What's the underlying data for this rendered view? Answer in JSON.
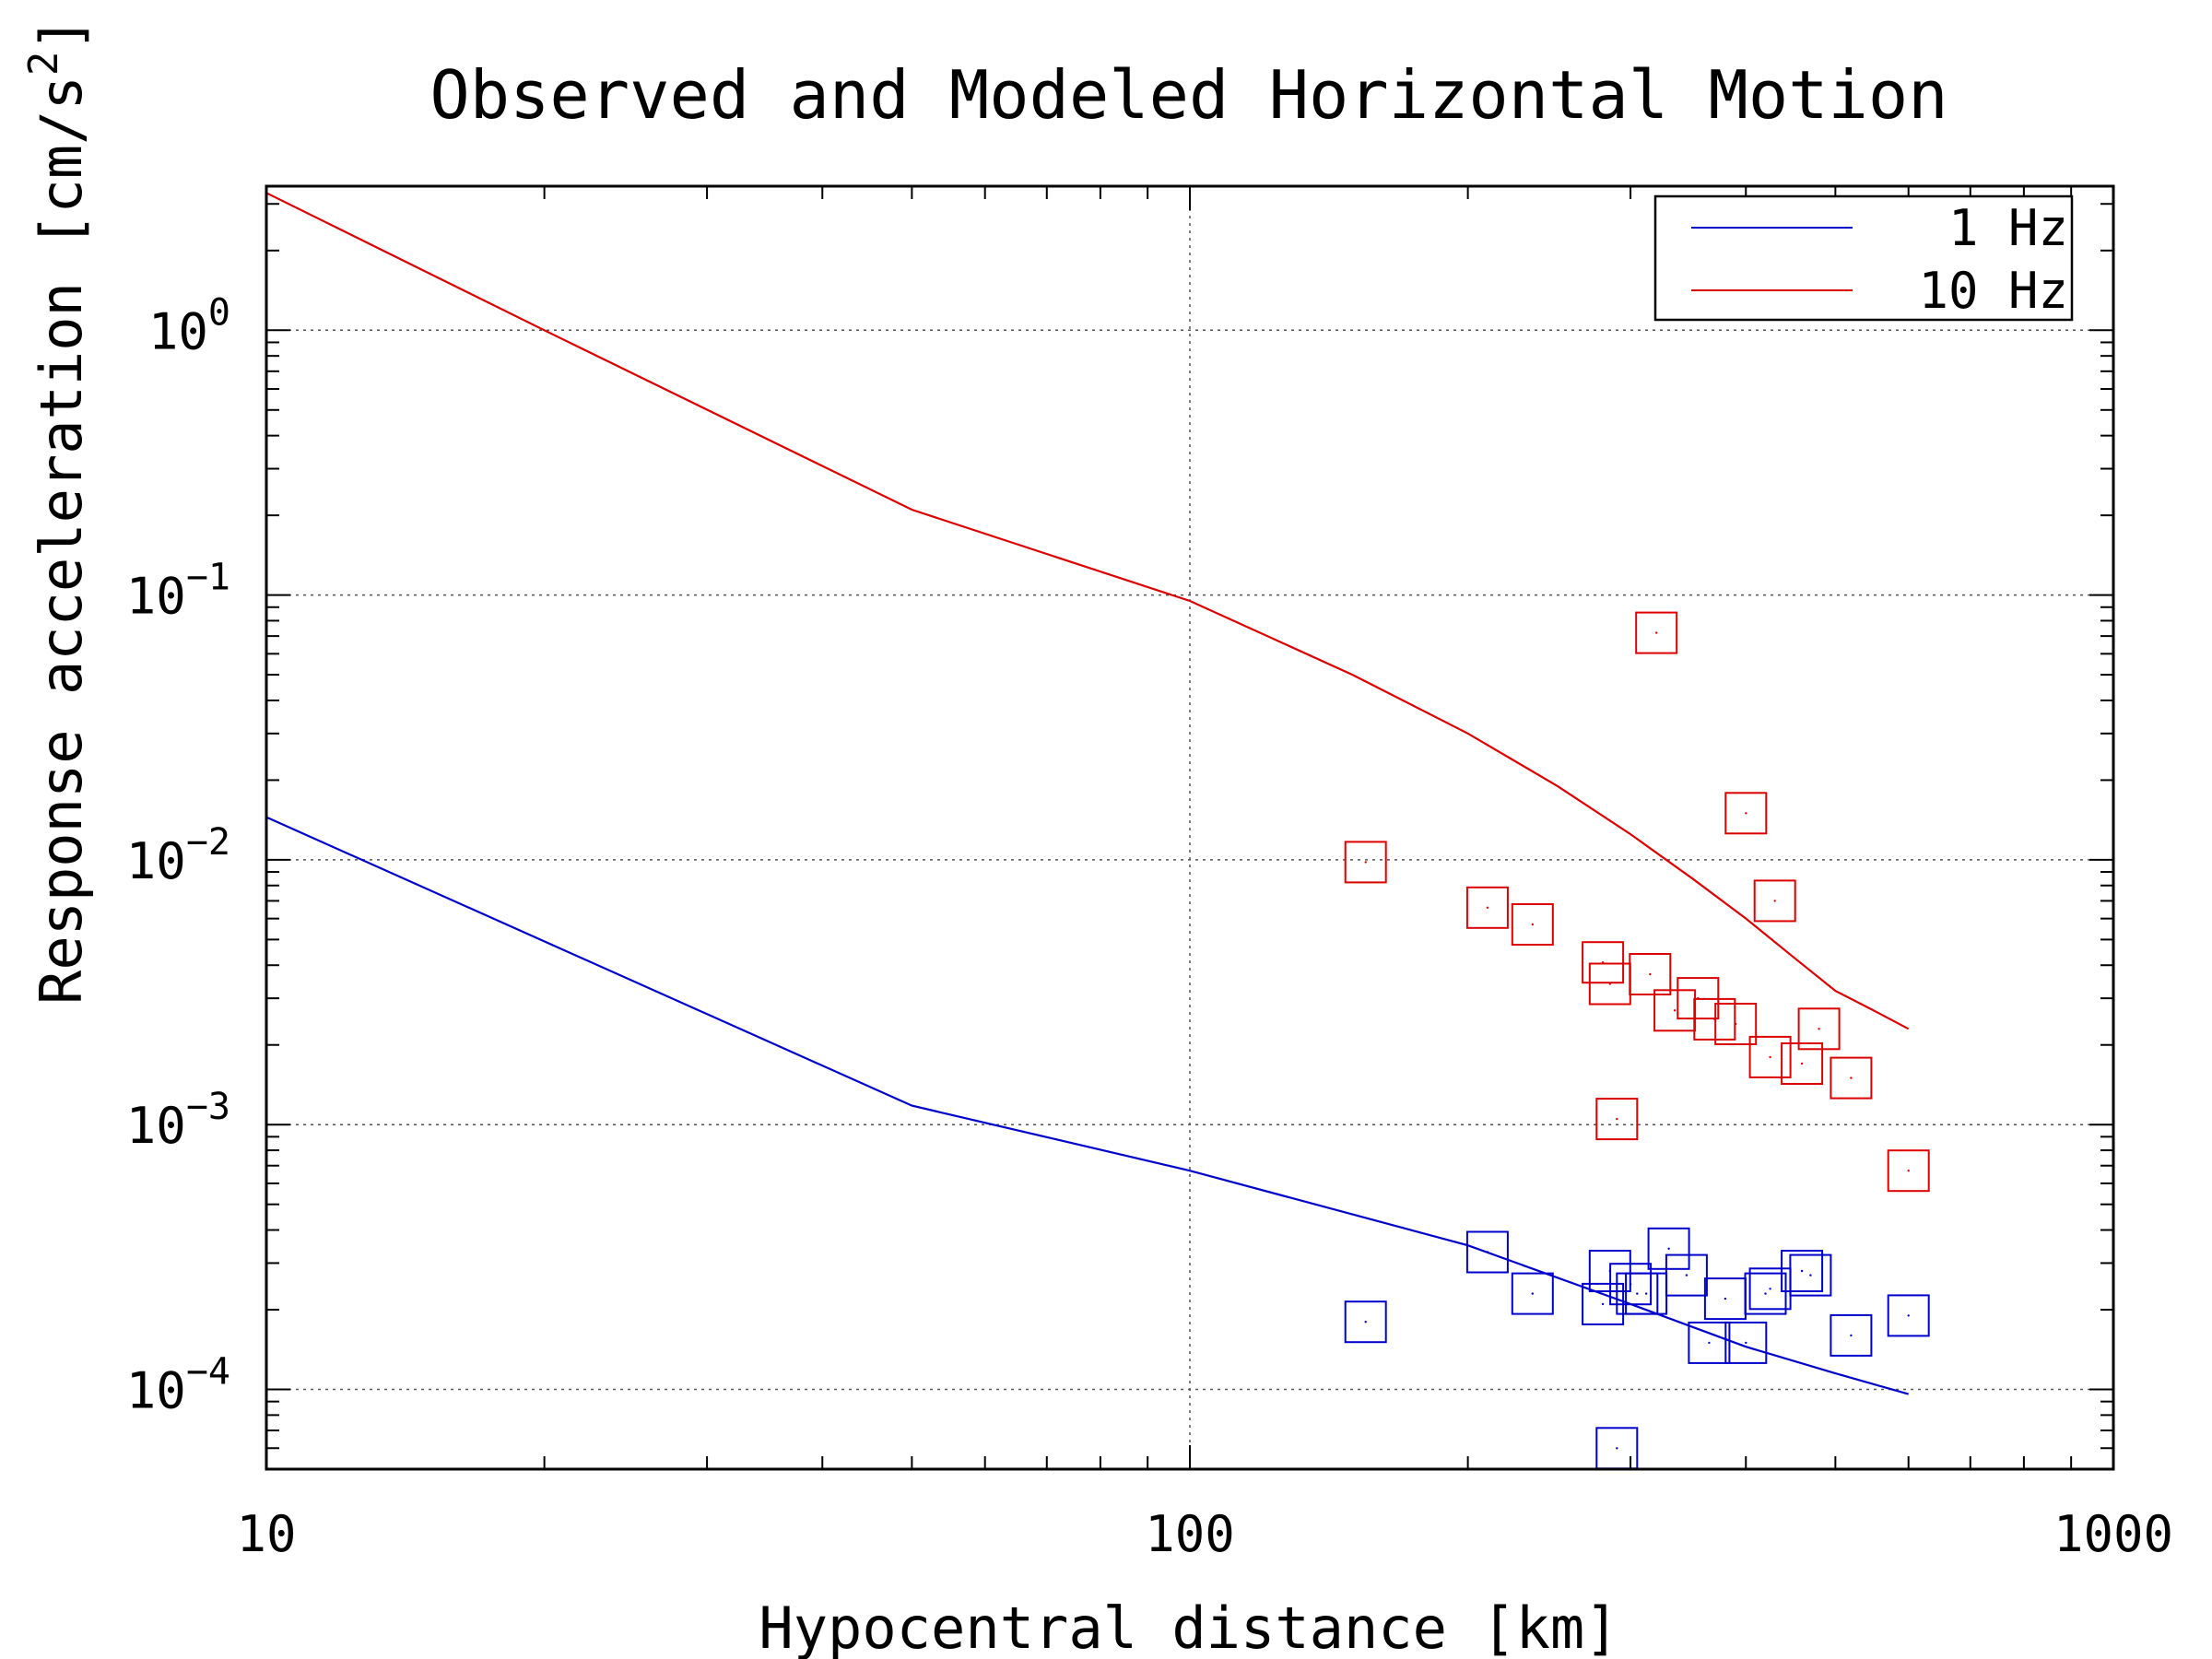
{
  "chart_data": {
    "type": "scatter",
    "title": "Observed and Modeled Horizontal Motion",
    "xlabel": "Hypocentral distance [km]",
    "ylabel": "Response acceleration [cm/s",
    "ylabel_superscript": "2",
    "ylabel_suffix": "]",
    "x_scale": "log",
    "y_scale": "log",
    "xlim": [
      10,
      1000
    ],
    "ylim": [
      5e-05,
      3.5
    ],
    "x_ticks": [
      {
        "value": 10,
        "label": "10"
      },
      {
        "value": 100,
        "label": "100"
      },
      {
        "value": 1000,
        "label": "1000"
      }
    ],
    "y_ticks": [
      {
        "value": 1,
        "base": "10",
        "exp": "0"
      },
      {
        "value": 0.1,
        "base": "10",
        "exp": "−1"
      },
      {
        "value": 0.01,
        "base": "10",
        "exp": "−2"
      },
      {
        "value": 0.001,
        "base": "10",
        "exp": "−3"
      },
      {
        "value": 0.0001,
        "base": "10",
        "exp": "−4"
      }
    ],
    "grid": true,
    "legend_position": "top-right",
    "series": [
      {
        "name": "1 Hz",
        "color": "#0000cc",
        "line": {
          "x": [
            10,
            50,
            100,
            200,
            300,
            400,
            500,
            600
          ],
          "y": [
            0.0145,
            0.00118,
            0.00067,
            0.00035,
            0.00021,
            0.000145,
            0.000115,
            9.6e-05
          ]
        },
        "observed": {
          "x": [
            155,
            210,
            235,
            280,
            285,
            300,
            305,
            312,
            330,
            345,
            365,
            380,
            400,
            420,
            425,
            460,
            470,
            520,
            600,
            290
          ],
          "y": [
            0.00018,
            0.00033,
            0.00023,
            0.00021,
            0.00028,
            0.00025,
            0.00023,
            0.00023,
            0.00034,
            0.00027,
            0.00015,
            0.00022,
            0.00015,
            0.00023,
            0.00024,
            0.00028,
            0.00027,
            0.00016,
            0.00019,
            6e-05
          ]
        }
      },
      {
        "name": "10 Hz",
        "color": "#dd0000",
        "line": {
          "x": [
            10,
            20,
            50,
            100,
            150,
            200,
            250,
            300,
            350,
            400,
            450,
            500,
            550,
            600
          ],
          "y": [
            3.3,
            1.0,
            0.21,
            0.095,
            0.05,
            0.03,
            0.019,
            0.0125,
            0.0085,
            0.006,
            0.0043,
            0.0032,
            0.0027,
            0.0023
          ]
        },
        "observed": {
          "x": [
            155,
            210,
            235,
            280,
            285,
            290,
            315,
            320,
            335,
            355,
            370,
            390,
            400,
            425,
            430,
            460,
            480,
            520,
            600
          ],
          "y": [
            0.0098,
            0.0066,
            0.0057,
            0.0041,
            0.0034,
            0.00105,
            0.0037,
            0.072,
            0.0027,
            0.003,
            0.0025,
            0.0024,
            0.015,
            0.0018,
            0.007,
            0.0017,
            0.0023,
            0.0015,
            0.00067
          ]
        }
      }
    ]
  }
}
